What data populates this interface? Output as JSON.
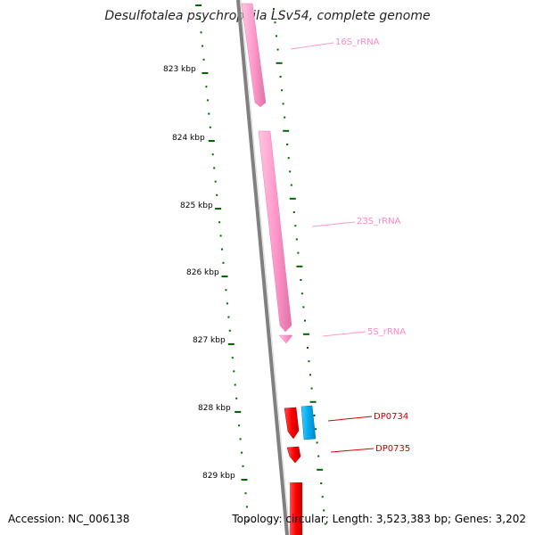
{
  "title": "Desulfotalea psychrophila LSv54, complete genome",
  "footer": {
    "accession": "Accession: NC_006138",
    "summary": "Topology: circular; Length: 3,523,383 bp; Genes: 3,202"
  },
  "scale_labels": [
    "823 kbp",
    "824 kbp",
    "825 kbp",
    "826 kbp",
    "827 kbp",
    "828 kbp",
    "829 kbp"
  ],
  "features": [
    {
      "name": "16S_rRNA",
      "type": "rRNA",
      "color": "#ff99cc"
    },
    {
      "name": "23S_rRNA",
      "type": "rRNA",
      "color": "#ff99cc"
    },
    {
      "name": "5S_rRNA",
      "type": "rRNA",
      "color": "#ff99cc"
    },
    {
      "name": "DP0734",
      "type": "CDS",
      "color": "#ff0000"
    },
    {
      "name": "DP0735",
      "type": "CDS",
      "color": "#ff0000"
    }
  ],
  "colors": {
    "backbone": "#808080",
    "ticks": "#006600",
    "rRNA": "#ff99cc",
    "cds_forward": "#ff0000",
    "cds_reverse": "#00aaee"
  }
}
